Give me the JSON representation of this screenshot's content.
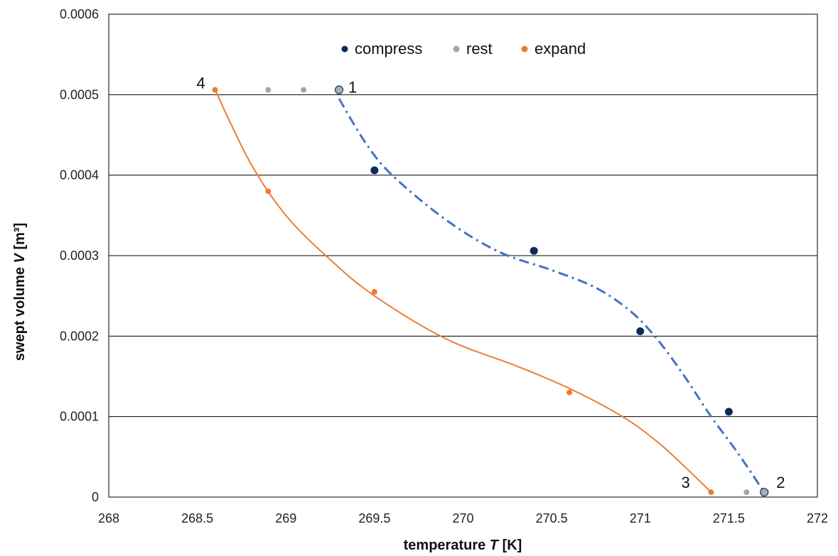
{
  "chart_data": {
    "type": "scatter",
    "xlabel_prefix": "temperature ",
    "xlabel_var": "T",
    "xlabel_suffix": " [K]",
    "ylabel_prefix": "swept volume ",
    "ylabel_var": "V",
    "ylabel_suffix": " [m³]",
    "xlim": [
      268,
      272
    ],
    "ylim": [
      0,
      0.0006
    ],
    "x_ticks": [
      "268",
      "268.5",
      "269",
      "269.5",
      "270",
      "270.5",
      "271",
      "271.5",
      "272"
    ],
    "y_ticks": [
      "0",
      "0.0001",
      "0.0002",
      "0.0003",
      "0.0004",
      "0.0005",
      "0.0006"
    ],
    "grid": "horizontal",
    "legend_position": "top-center",
    "series": [
      {
        "name": "compress",
        "color": "#0d2a5c",
        "points": [
          [
            269.5,
            0.000406
          ],
          [
            270.4,
            0.000306
          ],
          [
            271.0,
            0.000206
          ],
          [
            271.5,
            0.000106
          ]
        ]
      },
      {
        "name": "rest",
        "color": "#a6a6a6",
        "points": [
          [
            268.9,
            0.000506
          ],
          [
            269.1,
            0.000506
          ],
          [
            271.6,
            6e-06
          ]
        ]
      },
      {
        "name": "expand",
        "color": "#ed7d31",
        "points": [
          [
            268.6,
            0.000506
          ],
          [
            268.9,
            0.00038
          ],
          [
            269.5,
            0.000255
          ],
          [
            270.6,
            0.00013
          ],
          [
            271.4,
            6e-06
          ]
        ]
      }
    ],
    "state_points": [
      {
        "label": "1",
        "x": 269.3,
        "y": 0.000506
      },
      {
        "label": "2",
        "x": 271.7,
        "y": 6e-06
      }
    ],
    "point_labels": [
      {
        "label": "1",
        "x": 269.3,
        "y": 0.000506
      },
      {
        "label": "2",
        "x": 271.7,
        "y": 6e-06
      },
      {
        "label": "3",
        "x": 271.4,
        "y": 6e-06
      },
      {
        "label": "4",
        "x": 268.6,
        "y": 0.000506
      }
    ],
    "trendlines": [
      {
        "name": "compress-trend",
        "color": "#4472c4",
        "style": "dash-dot",
        "points": [
          [
            269.3,
            0.000495
          ],
          [
            269.45,
            0.00044
          ],
          [
            269.6,
            0.0004
          ],
          [
            269.9,
            0.000345
          ],
          [
            270.2,
            0.000305
          ],
          [
            270.5,
            0.000282
          ],
          [
            270.75,
            0.00026
          ],
          [
            270.95,
            0.00023
          ],
          [
            271.1,
            0.000195
          ],
          [
            271.25,
            0.00015
          ],
          [
            271.4,
            0.0001
          ],
          [
            271.55,
            5.5e-05
          ],
          [
            271.7,
            6e-06
          ]
        ]
      },
      {
        "name": "expand-trend",
        "color": "#ed7d31",
        "style": "solid",
        "points": [
          [
            268.6,
            0.000506
          ],
          [
            268.8,
            0.000415
          ],
          [
            269.0,
            0.00035
          ],
          [
            269.25,
            0.000295
          ],
          [
            269.5,
            0.00025
          ],
          [
            269.9,
            0.000197
          ],
          [
            270.3,
            0.000163
          ],
          [
            270.6,
            0.000135
          ],
          [
            270.9,
            0.0001
          ],
          [
            271.1,
            6.8e-05
          ],
          [
            271.25,
            3.8e-05
          ],
          [
            271.4,
            6e-06
          ]
        ]
      }
    ]
  }
}
